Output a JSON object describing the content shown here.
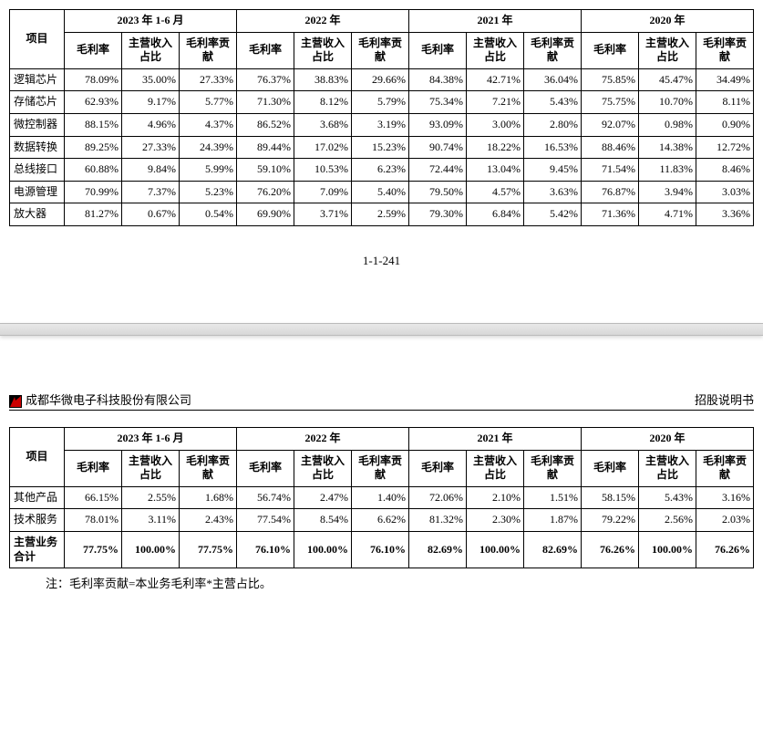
{
  "periods": [
    "2023 年 1-6 月",
    "2022 年",
    "2021 年",
    "2020 年"
  ],
  "subheaders": [
    "毛利率",
    "主营收入占比",
    "毛利率贡献"
  ],
  "col_project": "项目",
  "table1_rows": [
    {
      "label": "逻辑芯片",
      "v": [
        "78.09%",
        "35.00%",
        "27.33%",
        "76.37%",
        "38.83%",
        "29.66%",
        "84.38%",
        "42.71%",
        "36.04%",
        "75.85%",
        "45.47%",
        "34.49%"
      ]
    },
    {
      "label": "存储芯片",
      "v": [
        "62.93%",
        "9.17%",
        "5.77%",
        "71.30%",
        "8.12%",
        "5.79%",
        "75.34%",
        "7.21%",
        "5.43%",
        "75.75%",
        "10.70%",
        "8.11%"
      ]
    },
    {
      "label": "微控制器",
      "v": [
        "88.15%",
        "4.96%",
        "4.37%",
        "86.52%",
        "3.68%",
        "3.19%",
        "93.09%",
        "3.00%",
        "2.80%",
        "92.07%",
        "0.98%",
        "0.90%"
      ]
    },
    {
      "label": "数据转换",
      "v": [
        "89.25%",
        "27.33%",
        "24.39%",
        "89.44%",
        "17.02%",
        "15.23%",
        "90.74%",
        "18.22%",
        "16.53%",
        "88.46%",
        "14.38%",
        "12.72%"
      ]
    },
    {
      "label": "总线接口",
      "v": [
        "60.88%",
        "9.84%",
        "5.99%",
        "59.10%",
        "10.53%",
        "6.23%",
        "72.44%",
        "13.04%",
        "9.45%",
        "71.54%",
        "11.83%",
        "8.46%"
      ]
    },
    {
      "label": "电源管理",
      "v": [
        "70.99%",
        "7.37%",
        "5.23%",
        "76.20%",
        "7.09%",
        "5.40%",
        "79.50%",
        "4.57%",
        "3.63%",
        "76.87%",
        "3.94%",
        "3.03%"
      ]
    },
    {
      "label": "放大器",
      "v": [
        "81.27%",
        "0.67%",
        "0.54%",
        "69.90%",
        "3.71%",
        "2.59%",
        "79.30%",
        "6.84%",
        "5.42%",
        "71.36%",
        "4.71%",
        "3.36%"
      ]
    }
  ],
  "page_number": "1-1-241",
  "company_name": "成都华微电子科技股份有限公司",
  "doc_title": "招股说明书",
  "table2_rows": [
    {
      "label": "其他产品",
      "v": [
        "66.15%",
        "2.55%",
        "1.68%",
        "56.74%",
        "2.47%",
        "1.40%",
        "72.06%",
        "2.10%",
        "1.51%",
        "58.15%",
        "5.43%",
        "3.16%"
      ]
    },
    {
      "label": "技术服务",
      "v": [
        "78.01%",
        "3.11%",
        "2.43%",
        "77.54%",
        "8.54%",
        "6.62%",
        "81.32%",
        "2.30%",
        "1.87%",
        "79.22%",
        "2.56%",
        "2.03%"
      ]
    }
  ],
  "table2_total": {
    "label": "主营业务合计",
    "v": [
      "77.75%",
      "100.00%",
      "77.75%",
      "76.10%",
      "100.00%",
      "76.10%",
      "82.69%",
      "100.00%",
      "82.69%",
      "76.26%",
      "100.00%",
      "76.26%"
    ]
  },
  "note_text": "注：毛利率贡献=本业务毛利率*主营占比。"
}
